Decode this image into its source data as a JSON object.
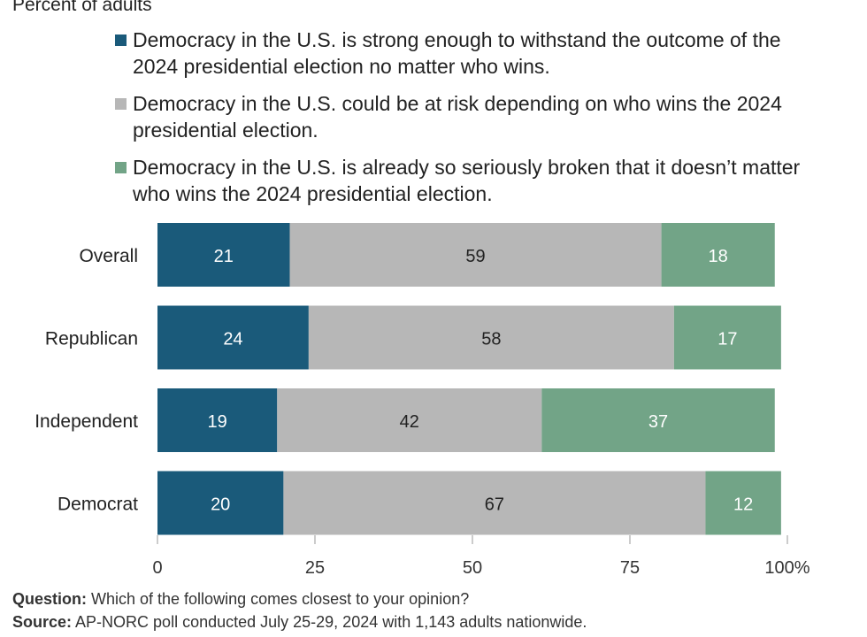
{
  "chart_data": {
    "type": "bar",
    "orientation": "horizontal",
    "stacked": true,
    "subtitle": "Percent of adults",
    "categories": [
      "Overall",
      "Republican",
      "Independent",
      "Democrat"
    ],
    "series": [
      {
        "name": "Democracy in the U.S. is strong enough to withstand the outcome of the 2024 presidential election no matter who wins.",
        "color": "#1a5a7a",
        "label_color": "#ffffff",
        "values": [
          21,
          24,
          19,
          20
        ]
      },
      {
        "name": "Democracy in the U.S. could be at risk depending on who wins the 2024 presidential election.",
        "color": "#b7b7b7",
        "label_color": "#222222",
        "values": [
          59,
          58,
          42,
          67
        ]
      },
      {
        "name": "Democracy in the U.S. is already so seriously broken that it doesn’t matter who wins the 2024 presidential election.",
        "color": "#72a487",
        "label_color": "#ffffff",
        "values": [
          18,
          17,
          37,
          12
        ]
      }
    ],
    "xlim": [
      0,
      100
    ],
    "x_ticks": [
      "0",
      "25",
      "50",
      "75",
      "100%"
    ],
    "legend_position": "top",
    "grid": false
  },
  "footer": {
    "question_label": "Question:",
    "question_text": " Which of the following comes closest to your opinion?",
    "source_label": "Source:",
    "source_text": " AP-NORC poll conducted July 25-29, 2024 with 1,143 adults nationwide."
  }
}
